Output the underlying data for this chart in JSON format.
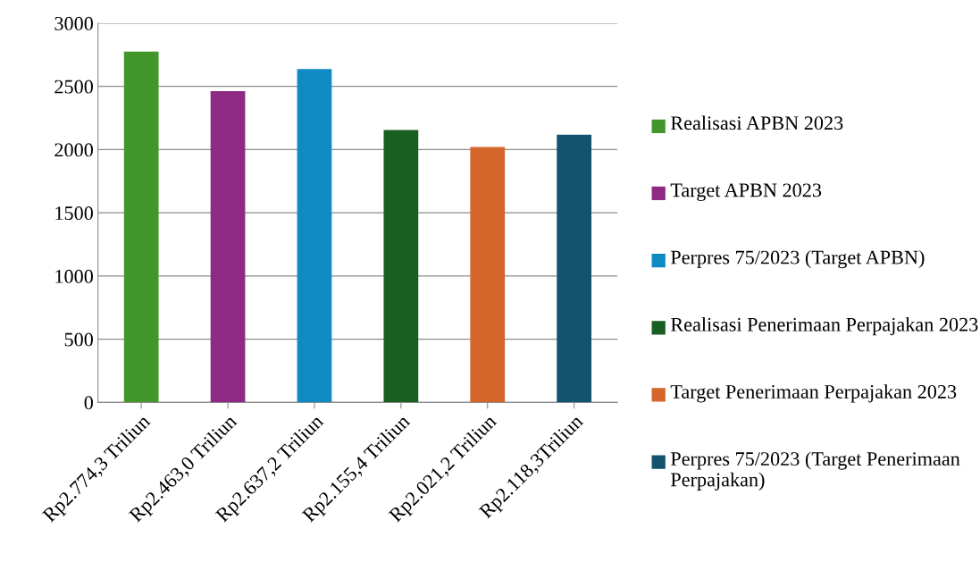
{
  "chart_data": {
    "type": "bar",
    "categories": [
      "Rp2.774,3 Triliun",
      "Rp2.463,0 Triliun",
      "Rp2.637,2 Triliun",
      "Rp2.155,4 Triliun",
      "Rp2.021,2 Triliun",
      "Rp2.118,3Triliun"
    ],
    "series": [
      {
        "name": "Realisasi APBN 2023",
        "color": "#43972a",
        "values": [
          2774.3,
          null,
          null,
          null,
          null,
          null
        ]
      },
      {
        "name": "Target APBN 2023",
        "color": "#8e2a84",
        "values": [
          null,
          2463.0,
          null,
          null,
          null,
          null
        ]
      },
      {
        "name": "Perpres 75/2023 (Target APBN)",
        "color": "#0f8ac3",
        "values": [
          null,
          null,
          2637.2,
          null,
          null,
          null
        ]
      },
      {
        "name": "Realisasi Penerimaan Perpajakan 2023",
        "color": "#185f21",
        "values": [
          null,
          null,
          null,
          2155.4,
          null,
          null
        ]
      },
      {
        "name": "Target Penerimaan Perpajakan 2023",
        "color": "#d4652b",
        "values": [
          null,
          null,
          null,
          null,
          2021.2,
          null
        ]
      },
      {
        "name": "Perpres 75/2023 (Target Penerimaan Perpajakan)",
        "color": "#13536f",
        "values": [
          null,
          null,
          null,
          null,
          null,
          2118.3
        ]
      }
    ],
    "ylim": [
      0,
      3000
    ],
    "yticks": [
      0,
      500,
      1000,
      1500,
      2000,
      2500,
      3000
    ],
    "grid": "y",
    "legend": "right"
  }
}
